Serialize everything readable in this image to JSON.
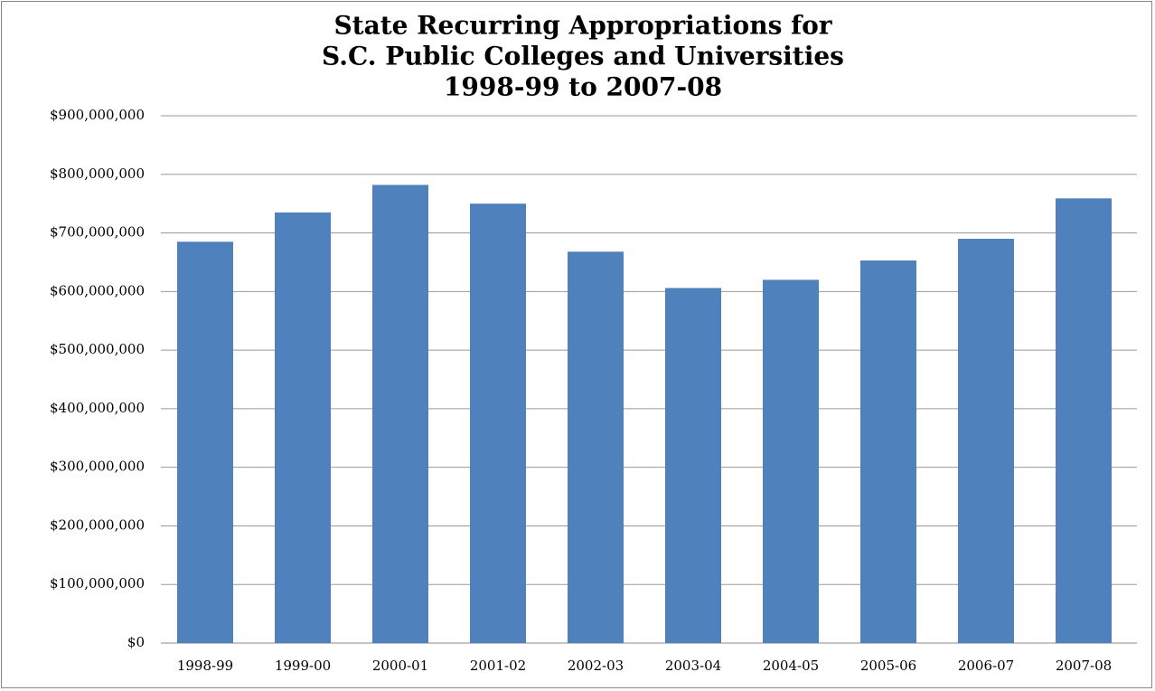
{
  "chart_data": {
    "type": "bar",
    "title": [
      "State Recurring Appropriations for",
      "S.C. Public Colleges and Universities",
      "1998-99 to 2007-08"
    ],
    "categories": [
      "1998-99",
      "1999-00",
      "2000-01",
      "2001-02",
      "2002-03",
      "2003-04",
      "2004-05",
      "2005-06",
      "2006-07",
      "2007-08"
    ],
    "values": [
      685000000,
      735000000,
      782000000,
      750000000,
      668000000,
      606000000,
      620000000,
      653000000,
      690000000,
      759000000
    ],
    "color": "#4f81bd",
    "ylim": [
      0,
      900000000
    ],
    "yticks": [
      {
        "value": 0,
        "label": "$0"
      },
      {
        "value": 100000000,
        "label": "$100,000,000"
      },
      {
        "value": 200000000,
        "label": "$200,000,000"
      },
      {
        "value": 300000000,
        "label": "$300,000,000"
      },
      {
        "value": 400000000,
        "label": "$400,000,000"
      },
      {
        "value": 500000000,
        "label": "$500,000,000"
      },
      {
        "value": 600000000,
        "label": "$600,000,000"
      },
      {
        "value": 700000000,
        "label": "$700,000,000"
      },
      {
        "value": 800000000,
        "label": "$800,000,000"
      },
      {
        "value": 900000000,
        "label": "$900,000,000"
      }
    ],
    "grid": true
  }
}
